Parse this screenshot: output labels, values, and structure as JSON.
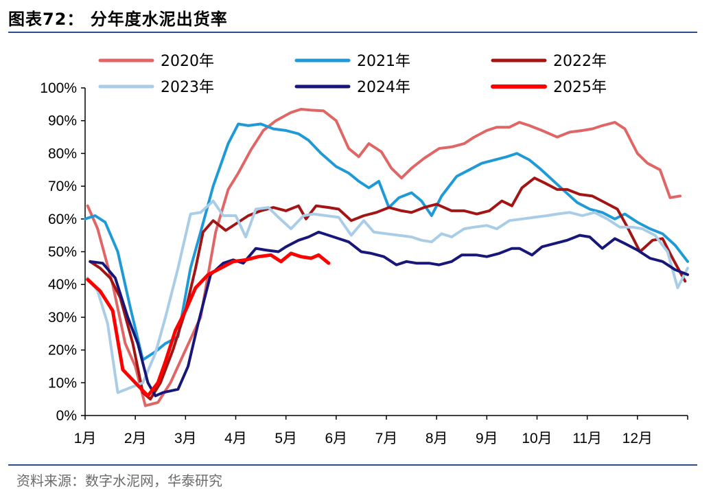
{
  "header": {
    "title": "图表72：  分年度水泥出货率"
  },
  "footer": {
    "source": "资料来源：数字水泥网，华泰研究"
  },
  "chart_data": {
    "type": "line",
    "title": "分年度水泥出货率",
    "ylim": [
      0,
      100
    ],
    "y_ticks": [
      "0%",
      "10%",
      "20%",
      "30%",
      "40%",
      "50%",
      "60%",
      "70%",
      "80%",
      "90%",
      "100%"
    ],
    "x_ticks": [
      "1月",
      "2月",
      "3月",
      "4月",
      "5月",
      "6月",
      "7月",
      "8月",
      "9月",
      "10月",
      "11月",
      "12月"
    ],
    "x_unit": "month (1 = start of Jan, 13 = end of Dec)",
    "legend_position": "top",
    "grid": false,
    "series": [
      {
        "name": "2020年",
        "color": "#e06666",
        "width": 4,
        "x": [
          1.05,
          1.25,
          1.55,
          1.8,
          2.0,
          2.2,
          2.45,
          2.7,
          3.0,
          3.3,
          3.6,
          3.85,
          4.05,
          4.3,
          4.55,
          4.8,
          5.1,
          5.3,
          5.5,
          5.75,
          6.0,
          6.25,
          6.45,
          6.65,
          6.9,
          7.1,
          7.3,
          7.5,
          7.75,
          8.05,
          8.3,
          8.55,
          8.75,
          9.0,
          9.2,
          9.45,
          9.65,
          9.85,
          10.1,
          10.4,
          10.65,
          10.9,
          11.1,
          11.3,
          11.55,
          11.75,
          12.0,
          12.2,
          12.45,
          12.65,
          12.85
        ],
        "y": [
          64,
          57,
          40,
          22,
          15,
          3,
          4,
          10,
          20,
          30,
          56,
          69,
          74,
          81,
          87,
          90,
          92.5,
          93.5,
          93.2,
          93,
          90,
          81.5,
          79,
          83,
          80.5,
          75.5,
          72.5,
          75.5,
          78.5,
          81.5,
          82,
          83,
          85,
          87,
          88,
          88,
          89.5,
          88.5,
          87,
          85,
          86.5,
          87,
          87.5,
          88.5,
          89.5,
          87.5,
          80,
          77,
          75,
          66.5,
          67
        ]
      },
      {
        "name": "2021年",
        "color": "#1f9ad6",
        "width": 4,
        "x": [
          1.0,
          1.2,
          1.4,
          1.65,
          1.9,
          2.15,
          2.4,
          2.6,
          2.85,
          3.1,
          3.3,
          3.55,
          3.85,
          4.05,
          4.25,
          4.5,
          4.75,
          5.0,
          5.25,
          5.45,
          5.7,
          6.0,
          6.25,
          6.45,
          6.65,
          6.85,
          7.05,
          7.25,
          7.5,
          7.7,
          7.9,
          8.1,
          8.4,
          8.65,
          8.9,
          9.15,
          9.4,
          9.6,
          9.85,
          10.05,
          10.3,
          10.55,
          10.8,
          11.05,
          11.3,
          11.55,
          11.75,
          12.0,
          12.25,
          12.5,
          12.75,
          13.0
        ],
        "y": [
          60,
          61,
          59,
          50,
          33,
          17,
          19.5,
          22,
          24,
          45,
          56,
          70,
          83,
          89,
          88.5,
          89,
          87.5,
          87,
          86,
          84,
          80,
          76,
          74,
          71.5,
          69.5,
          71.5,
          63.5,
          66.5,
          68,
          65.5,
          61,
          67,
          73,
          75,
          77,
          78,
          79,
          80,
          78,
          75.5,
          72,
          68.5,
          65,
          63,
          62,
          60,
          61.5,
          59,
          57,
          55.5,
          52,
          47
        ]
      },
      {
        "name": "2022年",
        "color": "#a31515",
        "width": 4,
        "x": [
          1.1,
          1.3,
          1.5,
          1.7,
          1.95,
          2.15,
          2.3,
          2.5,
          2.75,
          3.0,
          3.2,
          3.35,
          3.55,
          3.8,
          4.0,
          4.25,
          4.5,
          4.75,
          5.0,
          5.25,
          5.4,
          5.6,
          5.85,
          6.05,
          6.3,
          6.55,
          6.8,
          7.05,
          7.3,
          7.5,
          7.75,
          8.0,
          8.3,
          8.55,
          8.8,
          9.05,
          9.3,
          9.5,
          9.7,
          9.95,
          10.15,
          10.4,
          10.6,
          10.85,
          11.1,
          11.35,
          11.6,
          11.8,
          12.05,
          12.3,
          12.5,
          12.7,
          12.95
        ],
        "y": [
          47,
          45,
          42,
          36,
          22,
          7,
          5,
          10,
          20,
          32,
          45,
          56,
          59.5,
          56.5,
          58.5,
          61,
          62.5,
          63.5,
          62.5,
          64,
          60,
          64,
          63.5,
          63,
          59.5,
          61,
          62,
          63.5,
          62.5,
          62,
          63.5,
          64.5,
          62.5,
          62.5,
          61.5,
          62.5,
          65.5,
          64,
          69.5,
          72.5,
          71,
          69,
          69,
          67.5,
          67,
          65,
          63,
          57.5,
          50,
          53.5,
          54,
          48,
          41
        ]
      },
      {
        "name": "2023年",
        "color": "#a9cde6",
        "width": 4,
        "x": [
          1.05,
          1.25,
          1.45,
          1.65,
          1.9,
          2.15,
          2.4,
          2.6,
          2.85,
          3.1,
          3.3,
          3.55,
          3.75,
          4.0,
          4.2,
          4.4,
          4.65,
          4.85,
          5.1,
          5.35,
          5.55,
          5.8,
          6.05,
          6.3,
          6.55,
          6.75,
          7.0,
          7.25,
          7.5,
          7.7,
          7.9,
          8.1,
          8.3,
          8.55,
          8.75,
          9.0,
          9.2,
          9.45,
          9.7,
          9.95,
          10.2,
          10.4,
          10.65,
          10.9,
          11.15,
          11.4,
          11.65,
          11.9,
          12.1,
          12.35,
          12.6,
          12.8,
          13.0
        ],
        "y": [
          42,
          38,
          28,
          7,
          8.5,
          10,
          19,
          30,
          45,
          61.5,
          62,
          65.5,
          61,
          61,
          54.5,
          63,
          63.5,
          60.5,
          57,
          61,
          61.5,
          61,
          60.5,
          55,
          59.5,
          56,
          55.5,
          55,
          54.5,
          53.5,
          53,
          55.5,
          54.5,
          57,
          57.5,
          58,
          57,
          59.5,
          60,
          60.5,
          61,
          61.5,
          62,
          61,
          62,
          60,
          57.5,
          57.5,
          57,
          55,
          50,
          39,
          45
        ]
      },
      {
        "name": "2024年",
        "color": "#17177a",
        "width": 4,
        "x": [
          1.1,
          1.35,
          1.6,
          1.85,
          2.05,
          2.25,
          2.4,
          2.55,
          2.85,
          3.05,
          3.25,
          3.5,
          3.75,
          3.95,
          4.15,
          4.4,
          4.6,
          4.85,
          5.0,
          5.25,
          5.45,
          5.65,
          5.85,
          6.05,
          6.25,
          6.5,
          6.7,
          6.95,
          7.2,
          7.4,
          7.6,
          7.85,
          8.05,
          8.3,
          8.5,
          8.8,
          9.0,
          9.25,
          9.5,
          9.65,
          9.9,
          10.1,
          10.35,
          10.6,
          10.85,
          11.05,
          11.3,
          11.55,
          11.75,
          12.0,
          12.25,
          12.5,
          12.75,
          13.0
        ],
        "y": [
          47,
          46.5,
          42,
          30,
          22,
          10,
          6,
          7,
          8,
          15,
          28,
          43,
          46.5,
          47.5,
          46.5,
          51,
          50.5,
          50,
          51.5,
          53.5,
          54.5,
          56,
          55,
          54,
          53,
          50,
          49.5,
          48.5,
          46,
          47,
          46.5,
          46.5,
          46,
          47,
          49,
          49,
          48.5,
          49.5,
          51,
          51,
          49,
          51.5,
          52.5,
          53.5,
          55,
          54.5,
          51,
          54,
          52.5,
          50.5,
          48,
          47,
          44.5,
          43
        ]
      },
      {
        "name": "2025年",
        "color": "#ff0000",
        "width": 5,
        "x": [
          1.05,
          1.3,
          1.55,
          1.75,
          2.0,
          2.25,
          2.45,
          2.6,
          2.8,
          3.0,
          3.2,
          3.45,
          3.7,
          3.95,
          4.2,
          4.45,
          4.7,
          4.9,
          5.1,
          5.3,
          5.5,
          5.65,
          5.85
        ],
        "y": [
          41.5,
          38,
          32,
          14,
          10,
          6,
          10,
          16.5,
          26,
          32,
          39,
          43,
          45,
          47,
          47.5,
          48.5,
          49,
          47,
          49.5,
          48.5,
          48,
          49,
          46.5
        ]
      }
    ]
  }
}
